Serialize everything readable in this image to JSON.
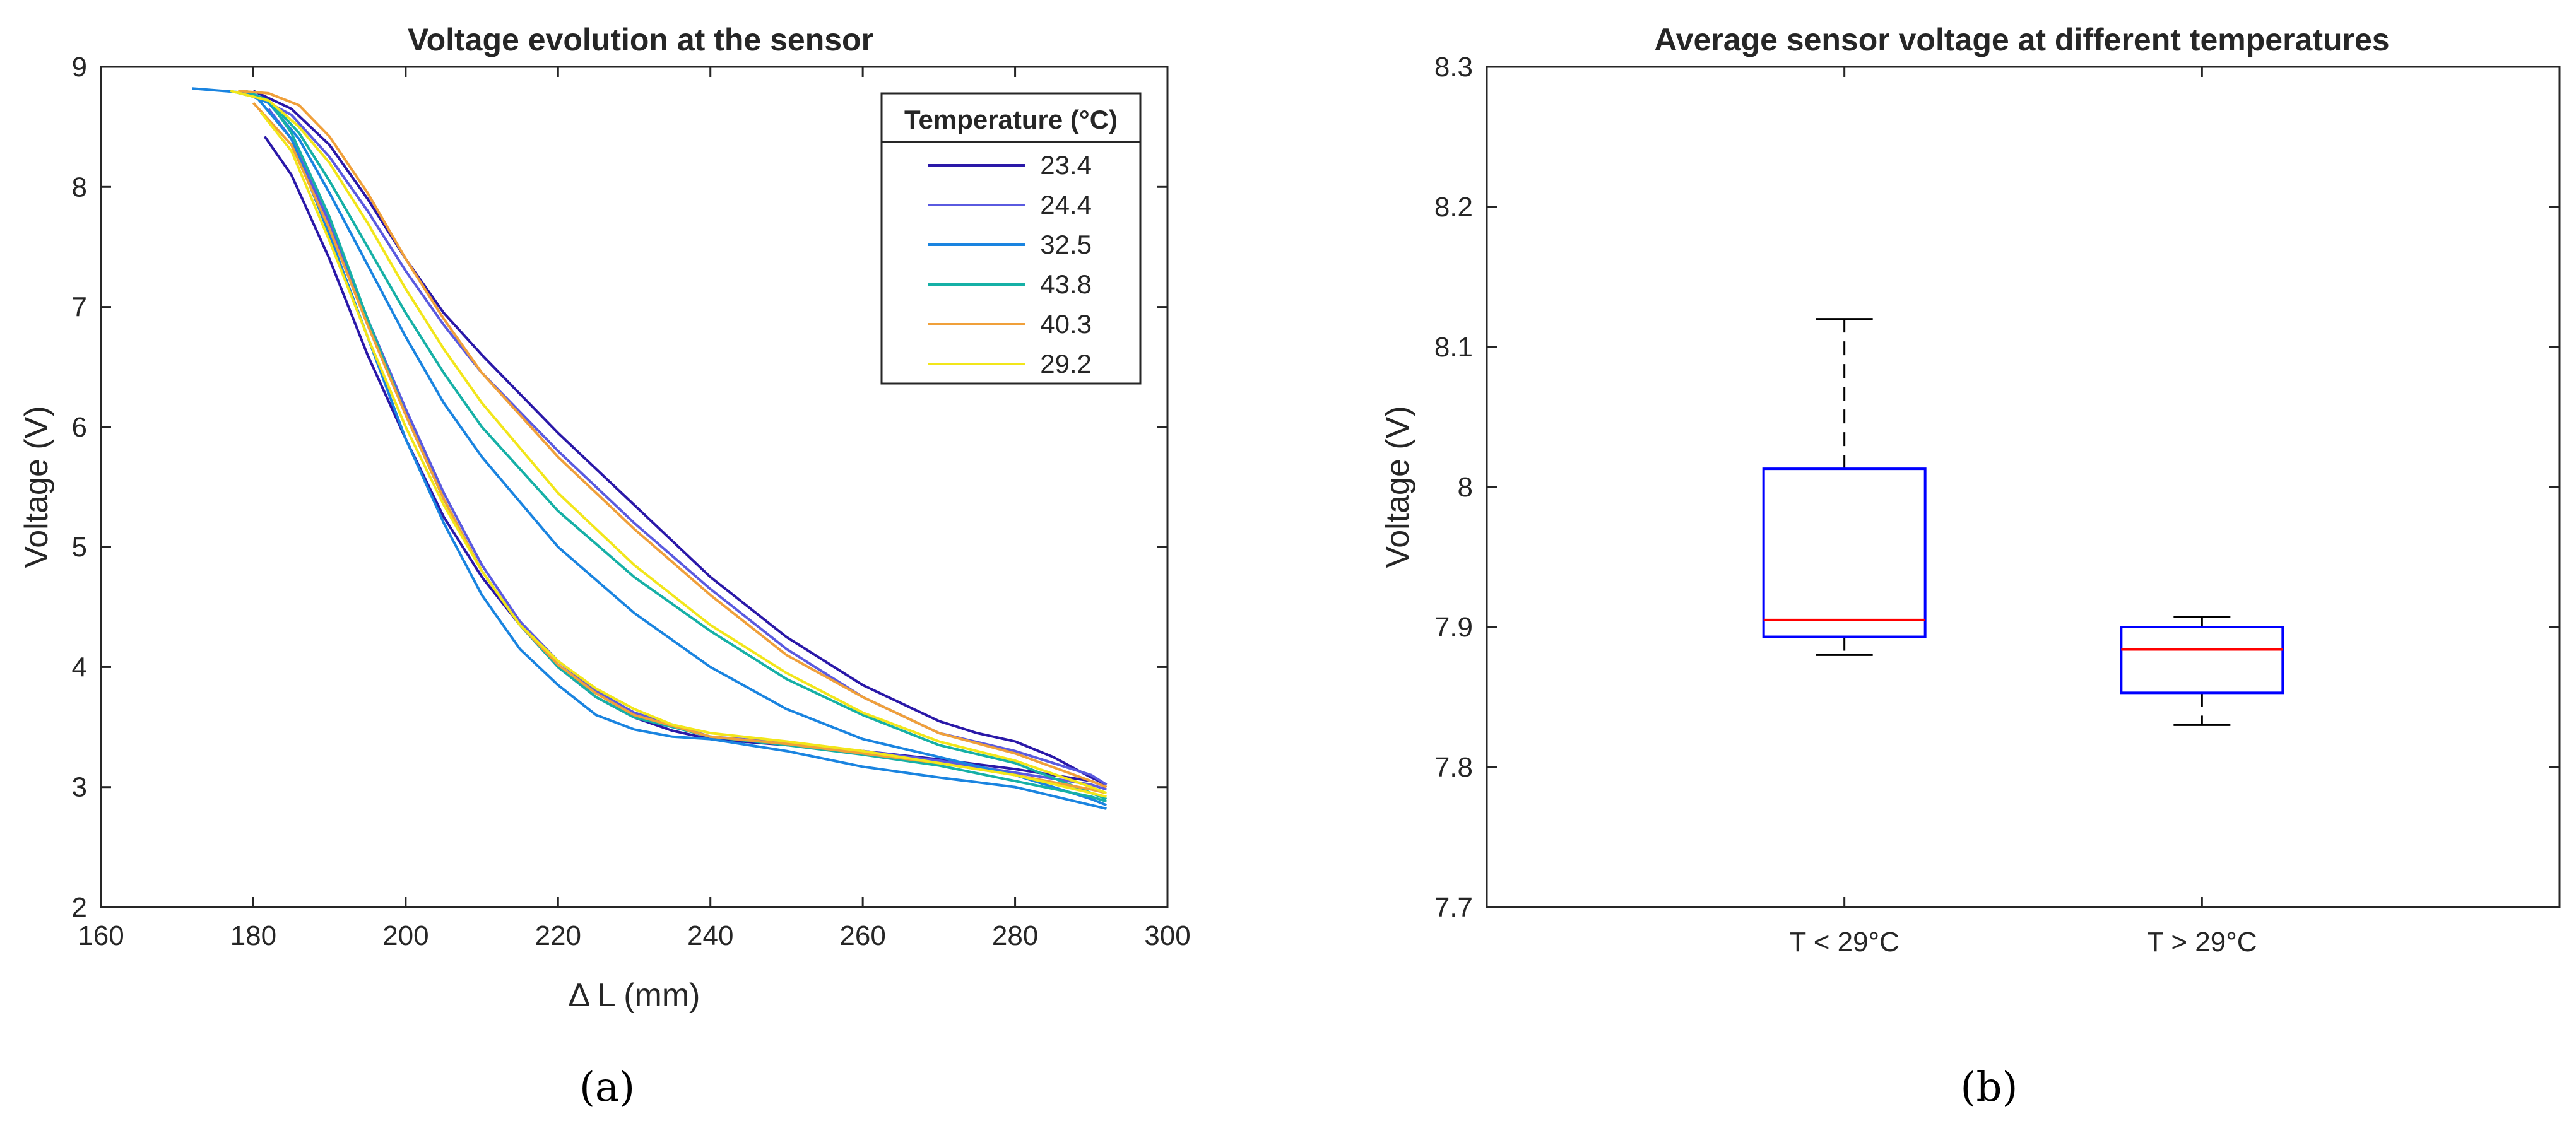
{
  "chart_data": [
    {
      "type": "line",
      "panel": "a",
      "title": "Voltage evolution at the sensor",
      "xlabel": "Δ L (mm)",
      "ylabel": "Voltage (V)",
      "xlim": [
        160,
        300
      ],
      "ylim": [
        2,
        9
      ],
      "xticks": [
        160,
        180,
        200,
        220,
        240,
        260,
        280,
        300
      ],
      "yticks": [
        2,
        3,
        4,
        5,
        6,
        7,
        8,
        9
      ],
      "legend_title": "Temperature (°C)",
      "legend_position": "top-right",
      "series": [
        {
          "name": "23.4",
          "color": "#2a18a8",
          "curves": [
            {
              "x": [
                181.5,
                185,
                190,
                195,
                200,
                205,
                210,
                215,
                220,
                225,
                230,
                235,
                240,
                250,
                260,
                270,
                280,
                290,
                292
              ],
              "y": [
                8.42,
                8.1,
                7.4,
                6.6,
                5.9,
                5.25,
                4.75,
                4.35,
                4.0,
                3.75,
                3.58,
                3.47,
                3.4,
                3.35,
                3.3,
                3.23,
                3.15,
                3.05,
                3.0
              ]
            },
            {
              "x": [
                180,
                185,
                190,
                195,
                200,
                205,
                210,
                220,
                230,
                240,
                250,
                260,
                270,
                275,
                280,
                285,
                290,
                292
              ],
              "y": [
                8.8,
                8.65,
                8.35,
                7.9,
                7.4,
                6.95,
                6.6,
                5.95,
                5.35,
                4.75,
                4.25,
                3.85,
                3.55,
                3.45,
                3.38,
                3.25,
                3.08,
                3.02
              ]
            }
          ]
        },
        {
          "name": "24.4",
          "color": "#5a5ae0",
          "curves": [
            {
              "x": [
                182,
                185,
                190,
                195,
                200,
                205,
                210,
                215,
                220,
                225,
                230,
                240,
                250,
                260,
                270,
                280,
                290,
                292
              ],
              "y": [
                8.65,
                8.4,
                7.7,
                6.9,
                6.15,
                5.45,
                4.85,
                4.38,
                4.05,
                3.8,
                3.62,
                3.42,
                3.37,
                3.3,
                3.22,
                3.12,
                3.02,
                2.98
              ]
            },
            {
              "x": [
                179,
                185,
                190,
                195,
                200,
                205,
                210,
                220,
                230,
                240,
                250,
                260,
                270,
                280,
                290,
                292
              ],
              "y": [
                8.8,
                8.6,
                8.25,
                7.8,
                7.3,
                6.85,
                6.45,
                5.8,
                5.2,
                4.65,
                4.15,
                3.75,
                3.45,
                3.3,
                3.1,
                3.02
              ]
            }
          ]
        },
        {
          "name": "32.5",
          "color": "#1a84e0",
          "curves": [
            {
              "x": [
                172,
                176,
                180,
                185,
                190,
                195,
                200,
                205,
                210,
                215,
                220,
                225,
                230,
                235,
                240,
                250,
                260,
                270,
                280,
                290,
                292
              ],
              "y": [
                8.82,
                8.8,
                8.78,
                8.4,
                7.6,
                6.75,
                5.9,
                5.2,
                4.6,
                4.15,
                3.85,
                3.6,
                3.48,
                3.42,
                3.4,
                3.3,
                3.17,
                3.08,
                3.0,
                2.85,
                2.82
              ]
            },
            {
              "x": [
                178,
                182,
                186,
                190,
                195,
                200,
                205,
                210,
                220,
                230,
                240,
                250,
                260,
                270,
                280,
                290,
                292
              ],
              "y": [
                8.8,
                8.7,
                8.4,
                7.95,
                7.35,
                6.75,
                6.2,
                5.75,
                5.0,
                4.45,
                4.0,
                3.65,
                3.4,
                3.25,
                3.1,
                2.9,
                2.85
              ]
            }
          ]
        },
        {
          "name": "43.8",
          "color": "#16b0a6",
          "curves": [
            {
              "x": [
                179,
                182,
                185,
                190,
                195,
                200,
                205,
                210,
                215,
                220,
                225,
                230,
                240,
                250,
                260,
                270,
                280,
                290,
                292
              ],
              "y": [
                8.8,
                8.72,
                8.45,
                7.75,
                6.9,
                6.1,
                5.4,
                4.8,
                4.35,
                4.0,
                3.75,
                3.58,
                3.42,
                3.35,
                3.27,
                3.18,
                3.05,
                2.92,
                2.88
              ]
            },
            {
              "x": [
                177,
                182,
                186,
                190,
                195,
                200,
                205,
                210,
                220,
                230,
                240,
                250,
                260,
                270,
                280,
                290,
                292
              ],
              "y": [
                8.8,
                8.72,
                8.45,
                8.05,
                7.5,
                6.95,
                6.45,
                6.0,
                5.3,
                4.75,
                4.3,
                3.9,
                3.6,
                3.35,
                3.2,
                2.95,
                2.9
              ]
            }
          ]
        },
        {
          "name": "40.3",
          "color": "#f0a03a",
          "curves": [
            {
              "x": [
                180,
                185,
                190,
                195,
                200,
                205,
                210,
                215,
                220,
                225,
                230,
                240,
                250,
                260,
                270,
                280,
                290,
                292
              ],
              "y": [
                8.7,
                8.35,
                7.65,
                6.85,
                6.1,
                5.4,
                4.8,
                4.35,
                4.02,
                3.78,
                3.6,
                3.42,
                3.36,
                3.28,
                3.2,
                3.1,
                2.98,
                2.95
              ]
            },
            {
              "x": [
                178,
                182,
                186,
                190,
                195,
                200,
                205,
                210,
                220,
                230,
                240,
                250,
                260,
                270,
                280,
                290,
                292
              ],
              "y": [
                8.8,
                8.78,
                8.68,
                8.42,
                7.95,
                7.4,
                6.9,
                6.45,
                5.75,
                5.15,
                4.6,
                4.1,
                3.75,
                3.45,
                3.28,
                3.05,
                3.0
              ]
            }
          ]
        },
        {
          "name": "29.2",
          "color": "#f2e61a",
          "curves": [
            {
              "x": [
                181,
                185,
                190,
                195,
                200,
                205,
                210,
                215,
                220,
                225,
                230,
                235,
                240,
                250,
                260,
                270,
                280,
                290,
                292
              ],
              "y": [
                8.62,
                8.3,
                7.55,
                6.75,
                6.0,
                5.35,
                4.8,
                4.35,
                4.05,
                3.82,
                3.65,
                3.52,
                3.45,
                3.38,
                3.3,
                3.2,
                3.1,
                2.95,
                2.92
              ]
            },
            {
              "x": [
                177,
                182,
                186,
                190,
                195,
                200,
                205,
                210,
                220,
                230,
                240,
                250,
                260,
                270,
                280,
                290,
                292
              ],
              "y": [
                8.8,
                8.72,
                8.5,
                8.2,
                7.7,
                7.15,
                6.65,
                6.2,
                5.45,
                4.85,
                4.35,
                3.95,
                3.62,
                3.38,
                3.22,
                3.0,
                2.95
              ]
            }
          ]
        }
      ]
    },
    {
      "type": "box",
      "panel": "b",
      "title": "Average sensor voltage at different temperatures",
      "xlabel": "",
      "ylabel": "Voltage (V)",
      "ylim": [
        7.7,
        8.3
      ],
      "yticks": [
        7.7,
        7.8,
        7.9,
        8,
        8.1,
        8.2,
        8.3
      ],
      "categories": [
        "T < 29°C",
        "T > 29°C"
      ],
      "boxes": [
        {
          "category": "T < 29°C",
          "whisker_low": 7.88,
          "q1": 7.893,
          "median": 7.905,
          "q3": 8.013,
          "whisker_high": 8.12
        },
        {
          "category": "T > 29°C",
          "whisker_low": 7.83,
          "q1": 7.853,
          "median": 7.884,
          "q3": 7.9,
          "whisker_high": 7.907
        }
      ],
      "box_color": "#0000ff",
      "median_color": "#ff0000",
      "whisker_color": "#000000"
    }
  ],
  "captions": {
    "a": "(a)",
    "b": "(b)"
  }
}
